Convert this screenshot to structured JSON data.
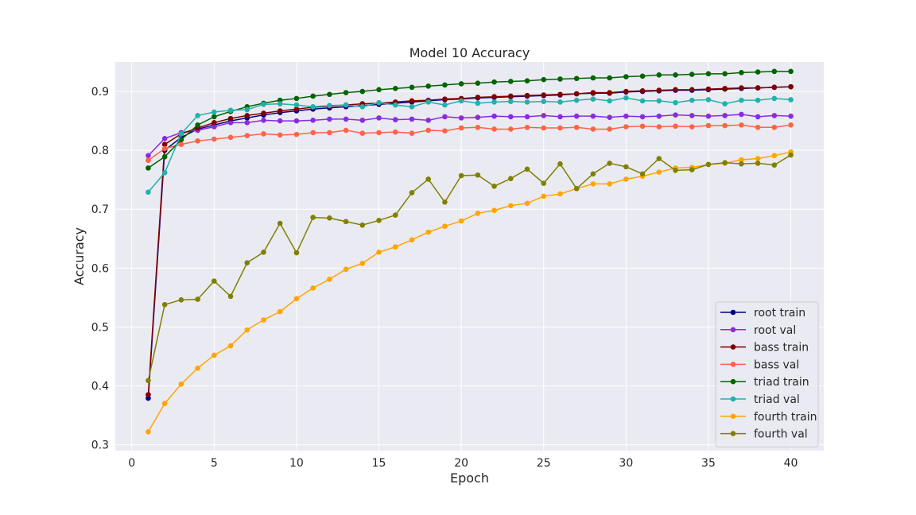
{
  "chart_data": {
    "type": "line",
    "title": "Model 10 Accuracy",
    "xlabel": "Epoch",
    "ylabel": "Accuracy",
    "xlim": [
      -1,
      42
    ],
    "ylim": [
      0.29,
      0.95
    ],
    "xticks": [
      0,
      5,
      10,
      15,
      20,
      25,
      30,
      35,
      40
    ],
    "yticks": [
      0.3,
      0.4,
      0.5,
      0.6,
      0.7,
      0.8,
      0.9
    ],
    "grid": true,
    "legend_position": "lower-right",
    "x": [
      1,
      2,
      3,
      4,
      5,
      6,
      7,
      8,
      9,
      10,
      11,
      12,
      13,
      14,
      15,
      16,
      17,
      18,
      19,
      20,
      21,
      22,
      23,
      24,
      25,
      26,
      27,
      28,
      29,
      30,
      31,
      32,
      33,
      34,
      35,
      36,
      37,
      38,
      39,
      40
    ],
    "series": [
      {
        "name": "root train",
        "color": "#00008b",
        "values": [
          0.379,
          0.8,
          0.822,
          0.836,
          0.843,
          0.85,
          0.855,
          0.86,
          0.864,
          0.867,
          0.87,
          0.872,
          0.874,
          0.876,
          0.878,
          0.88,
          0.882,
          0.884,
          0.886,
          0.887,
          0.889,
          0.89,
          0.891,
          0.892,
          0.893,
          0.894,
          0.896,
          0.897,
          0.897,
          0.899,
          0.9,
          0.901,
          0.902,
          0.902,
          0.903,
          0.904,
          0.905,
          0.906,
          0.907,
          0.908
        ]
      },
      {
        "name": "root val",
        "color": "#8a2be2",
        "values": [
          0.791,
          0.82,
          0.83,
          0.834,
          0.84,
          0.847,
          0.847,
          0.851,
          0.85,
          0.85,
          0.851,
          0.853,
          0.853,
          0.851,
          0.855,
          0.852,
          0.853,
          0.851,
          0.857,
          0.855,
          0.856,
          0.858,
          0.857,
          0.857,
          0.859,
          0.857,
          0.858,
          0.858,
          0.856,
          0.858,
          0.857,
          0.858,
          0.86,
          0.859,
          0.858,
          0.859,
          0.861,
          0.857,
          0.859,
          0.858
        ]
      },
      {
        "name": "bass train",
        "color": "#800000",
        "values": [
          0.385,
          0.81,
          0.828,
          0.838,
          0.847,
          0.854,
          0.859,
          0.863,
          0.867,
          0.87,
          0.873,
          0.875,
          0.877,
          0.879,
          0.88,
          0.882,
          0.884,
          0.885,
          0.887,
          0.888,
          0.89,
          0.891,
          0.892,
          0.893,
          0.894,
          0.895,
          0.896,
          0.898,
          0.898,
          0.9,
          0.901,
          0.902,
          0.903,
          0.903,
          0.904,
          0.905,
          0.906,
          0.906,
          0.907,
          0.908
        ]
      },
      {
        "name": "bass val",
        "color": "#ff6347",
        "values": [
          0.783,
          0.803,
          0.81,
          0.816,
          0.819,
          0.822,
          0.825,
          0.828,
          0.826,
          0.827,
          0.83,
          0.83,
          0.834,
          0.829,
          0.83,
          0.831,
          0.829,
          0.834,
          0.833,
          0.838,
          0.839,
          0.836,
          0.836,
          0.839,
          0.838,
          0.838,
          0.839,
          0.836,
          0.836,
          0.84,
          0.841,
          0.84,
          0.841,
          0.84,
          0.842,
          0.842,
          0.843,
          0.839,
          0.839,
          0.843
        ]
      },
      {
        "name": "triad train",
        "color": "#006400",
        "values": [
          0.77,
          0.789,
          0.818,
          0.843,
          0.857,
          0.866,
          0.874,
          0.88,
          0.885,
          0.888,
          0.892,
          0.895,
          0.898,
          0.9,
          0.903,
          0.905,
          0.907,
          0.909,
          0.911,
          0.913,
          0.914,
          0.916,
          0.917,
          0.918,
          0.92,
          0.921,
          0.922,
          0.923,
          0.923,
          0.925,
          0.926,
          0.928,
          0.928,
          0.929,
          0.93,
          0.93,
          0.932,
          0.933,
          0.934,
          0.934
        ]
      },
      {
        "name": "triad val",
        "color": "#20b2aa",
        "values": [
          0.729,
          0.762,
          0.828,
          0.859,
          0.865,
          0.868,
          0.869,
          0.878,
          0.879,
          0.877,
          0.874,
          0.876,
          0.877,
          0.874,
          0.881,
          0.877,
          0.874,
          0.882,
          0.877,
          0.884,
          0.88,
          0.882,
          0.883,
          0.882,
          0.883,
          0.882,
          0.885,
          0.887,
          0.884,
          0.889,
          0.884,
          0.884,
          0.881,
          0.885,
          0.886,
          0.879,
          0.885,
          0.885,
          0.888,
          0.886
        ]
      },
      {
        "name": "fourth train",
        "color": "#ffa500",
        "values": [
          0.322,
          0.37,
          0.403,
          0.43,
          0.452,
          0.468,
          0.495,
          0.512,
          0.526,
          0.548,
          0.566,
          0.581,
          0.598,
          0.608,
          0.627,
          0.636,
          0.648,
          0.661,
          0.671,
          0.68,
          0.693,
          0.698,
          0.706,
          0.71,
          0.722,
          0.726,
          0.735,
          0.743,
          0.743,
          0.751,
          0.756,
          0.763,
          0.77,
          0.771,
          0.776,
          0.778,
          0.784,
          0.786,
          0.791,
          0.797
        ]
      },
      {
        "name": "fourth val",
        "color": "#808000",
        "values": [
          0.409,
          0.538,
          0.546,
          0.547,
          0.578,
          0.552,
          0.609,
          0.627,
          0.676,
          0.626,
          0.686,
          0.685,
          0.679,
          0.673,
          0.681,
          0.69,
          0.728,
          0.751,
          0.712,
          0.757,
          0.758,
          0.739,
          0.752,
          0.768,
          0.744,
          0.777,
          0.735,
          0.76,
          0.778,
          0.772,
          0.76,
          0.786,
          0.766,
          0.767,
          0.776,
          0.779,
          0.777,
          0.778,
          0.775,
          0.792
        ]
      }
    ]
  }
}
